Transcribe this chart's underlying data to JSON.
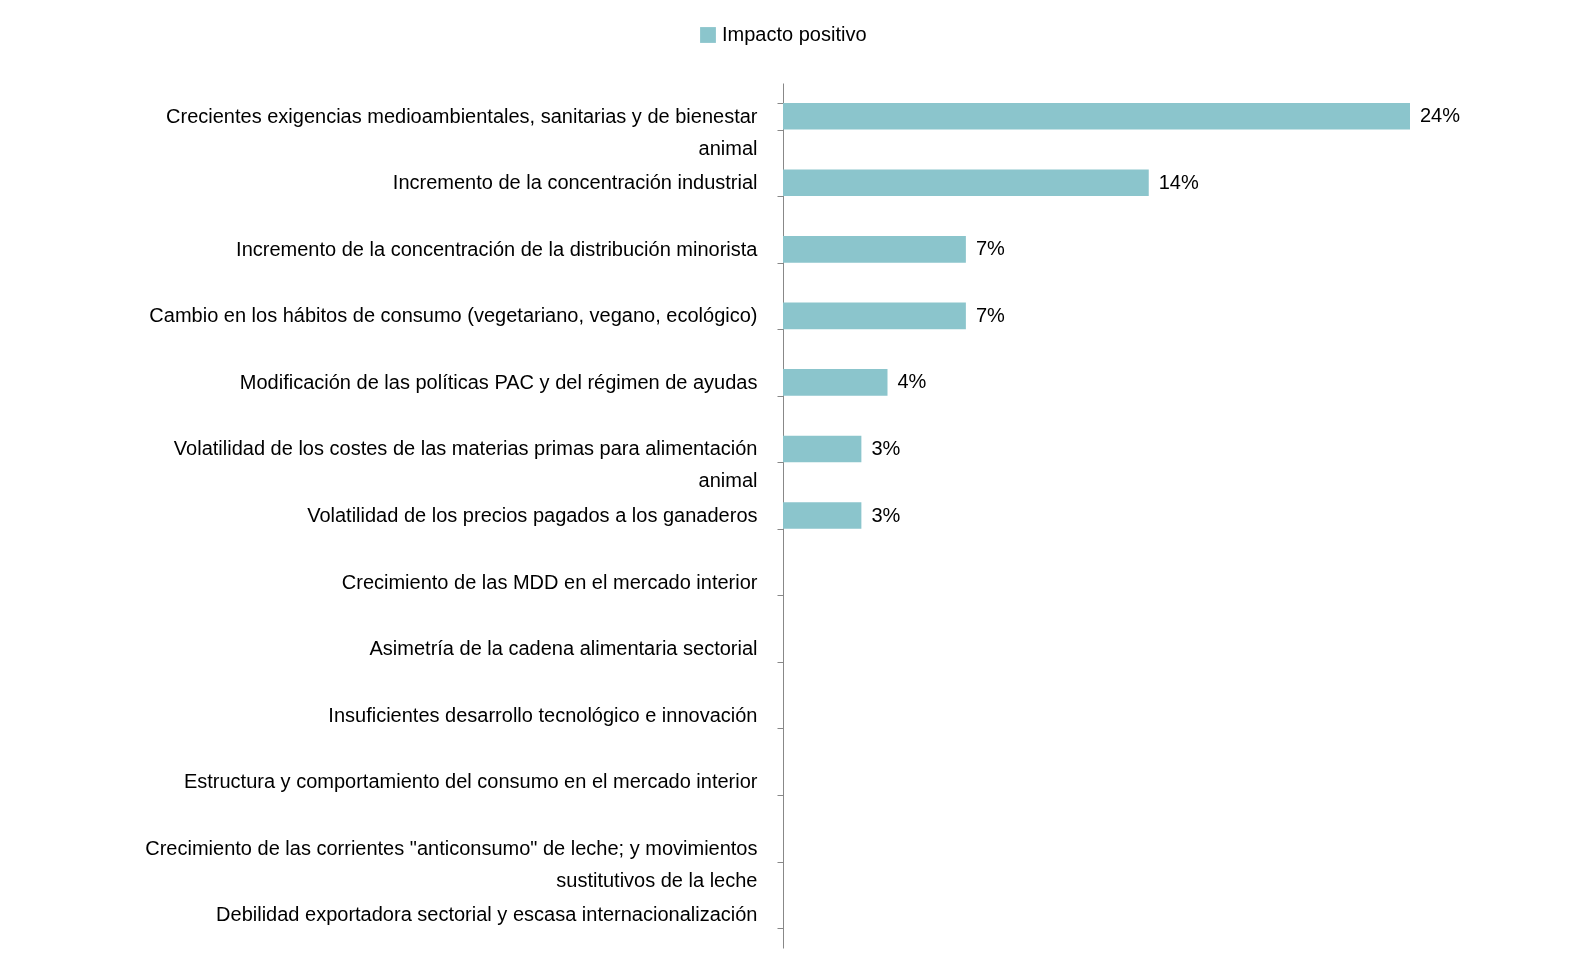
{
  "chart_data": {
    "type": "bar",
    "orientation": "horizontal",
    "legend": "top",
    "categories": [
      "Crecientes exigencias medioambientales, sanitarias y de bienestar animal",
      "Incremento de la concentración industrial",
      "Incremento de la concentración de la distribución minorista",
      "Cambio en los hábitos de consumo (vegetariano, vegano, ecológico)",
      "Modificación de las políticas PAC y del régimen de ayudas",
      "Volatilidad de los costes de las materias primas para alimentación animal",
      "Volatilidad de los precios pagados a los ganaderos",
      "Crecimiento de las MDD en el mercado interior",
      "Asimetría de la cadena alimentaria sectorial",
      "Insuficientes desarrollo tecnológico e innovación",
      "Estructura y comportamiento del consumo en el mercado interior",
      "Crecimiento de las corrientes \"anticonsumo\" de leche; y movimientos sustitutivos de la leche",
      "Debilidad exportadora sectorial y escasa internacionalización"
    ],
    "series": [
      {
        "name": "Impacto positivo",
        "color": "#8bc5cc",
        "values": [
          24,
          14,
          7,
          7,
          4,
          3,
          3,
          null,
          null,
          null,
          null,
          null,
          null
        ],
        "value_labels": [
          "24%",
          "14%",
          "7%",
          "7%",
          "4%",
          "3%",
          "3%",
          null,
          null,
          null,
          null,
          null,
          null
        ]
      }
    ]
  }
}
